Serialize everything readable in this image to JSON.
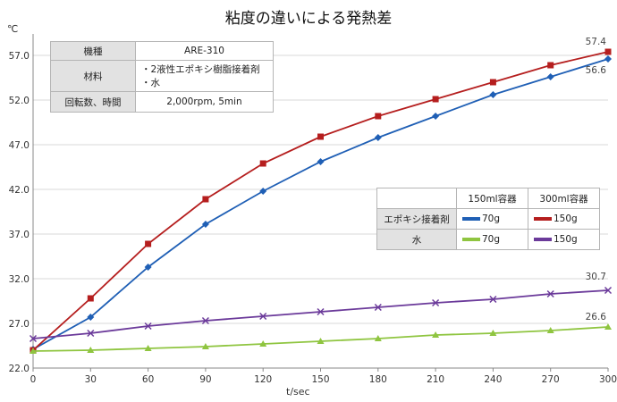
{
  "title": "粘度の違いによる発熱差",
  "unit_label": "℃",
  "info_table": {
    "rows": [
      {
        "label": "機種",
        "value": "ARE-310"
      },
      {
        "label": "材料",
        "value_lines": [
          "・2液性エポキシ樹脂接着剤",
          "・水"
        ]
      },
      {
        "label": "回転数、時間",
        "value": "2,000rpm, 5min"
      }
    ]
  },
  "legend_table": {
    "col_headers": [
      "150ml容器",
      "300ml容器"
    ],
    "rows": [
      {
        "label": "エポキシ接着剤",
        "cells": [
          "70g",
          "150g"
        ]
      },
      {
        "label": "水",
        "cells": [
          "70g",
          "150g"
        ]
      }
    ]
  },
  "colors": {
    "epoxy_70": "#1f5fb5",
    "epoxy_150": "#b51e1e",
    "water_70": "#8fc540",
    "water_150": "#6b3a9a"
  },
  "chart_data": {
    "type": "line",
    "title": "粘度の違いによる発熱差",
    "xlabel": "t/sec",
    "ylabel": "℃",
    "x": [
      0,
      30,
      60,
      90,
      120,
      150,
      180,
      210,
      240,
      270,
      300
    ],
    "x_ticks": [
      "0",
      "30",
      "60",
      "90",
      "120",
      "150",
      "180",
      "210",
      "240",
      "270",
      "300"
    ],
    "y_ticks": [
      "22.0",
      "27.0",
      "32.0",
      "37.0",
      "42.0",
      "47.0",
      "52.0",
      "57.0"
    ],
    "xlim": [
      0,
      300
    ],
    "ylim": [
      22,
      59
    ],
    "grid": "horizontal",
    "series": [
      {
        "key": "epoxy_70",
        "marker": "diamond",
        "values": [
          24.1,
          27.7,
          33.3,
          38.1,
          41.8,
          45.1,
          47.8,
          50.2,
          52.6,
          54.6,
          56.6
        ]
      },
      {
        "key": "epoxy_150",
        "marker": "square",
        "values": [
          24.0,
          29.8,
          35.9,
          40.9,
          44.9,
          47.9,
          50.2,
          52.1,
          54.0,
          55.9,
          57.4
        ]
      },
      {
        "key": "water_70",
        "marker": "triangle",
        "values": [
          23.9,
          24.0,
          24.2,
          24.4,
          24.7,
          25.0,
          25.3,
          25.7,
          25.9,
          26.2,
          26.6
        ]
      },
      {
        "key": "water_150",
        "marker": "cross",
        "values": [
          25.3,
          25.9,
          26.7,
          27.3,
          27.8,
          28.3,
          28.8,
          29.3,
          29.7,
          30.3,
          30.7
        ]
      }
    ],
    "end_labels": [
      {
        "series": "epoxy_150",
        "text": "57.4"
      },
      {
        "series": "epoxy_70",
        "text": "56.6"
      },
      {
        "series": "water_150",
        "text": "30.7"
      },
      {
        "series": "water_70",
        "text": "26.6"
      }
    ]
  }
}
